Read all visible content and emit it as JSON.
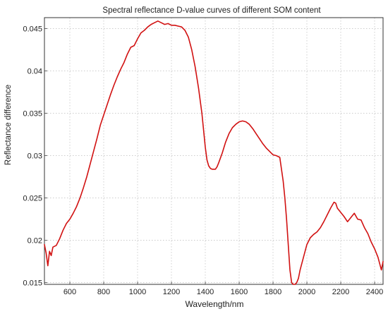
{
  "chart_data": {
    "type": "line",
    "title": "Spectral reflectance D-value curves of different SOM content",
    "xlabel": "Wavelength/nm",
    "ylabel": "Reflectance difference",
    "xlim": [
      450,
      2450
    ],
    "ylim": [
      0.0148,
      0.0463
    ],
    "xticks": [
      600,
      800,
      1000,
      1200,
      1400,
      1600,
      1800,
      2000,
      2200,
      2400
    ],
    "yticks": [
      0.015,
      0.02,
      0.025,
      0.03,
      0.035,
      0.04,
      0.045
    ],
    "ytick_labels": [
      "0.015",
      "0.02",
      "0.025",
      "0.03",
      "0.035",
      "0.04",
      "0.045"
    ],
    "grid": true,
    "series": [
      {
        "color": "#d11111",
        "x": [
          450,
          460,
          470,
          480,
          490,
          500,
          520,
          540,
          560,
          580,
          600,
          620,
          640,
          660,
          680,
          700,
          720,
          740,
          760,
          780,
          800,
          820,
          840,
          860,
          880,
          900,
          920,
          940,
          960,
          980,
          1000,
          1020,
          1040,
          1060,
          1080,
          1100,
          1120,
          1140,
          1160,
          1180,
          1200,
          1220,
          1240,
          1260,
          1280,
          1300,
          1320,
          1340,
          1360,
          1380,
          1400,
          1410,
          1420,
          1430,
          1440,
          1450,
          1460,
          1470,
          1480,
          1500,
          1520,
          1540,
          1560,
          1580,
          1600,
          1620,
          1640,
          1660,
          1680,
          1700,
          1720,
          1740,
          1760,
          1780,
          1800,
          1820,
          1840,
          1860,
          1870,
          1880,
          1890,
          1900,
          1910,
          1920,
          1930,
          1940,
          1950,
          1960,
          1980,
          2000,
          2020,
          2040,
          2060,
          2080,
          2100,
          2120,
          2140,
          2160,
          2170,
          2180,
          2200,
          2220,
          2240,
          2260,
          2280,
          2300,
          2320,
          2340,
          2360,
          2380,
          2400,
          2420,
          2440,
          2450
        ],
        "y": [
          0.0195,
          0.0185,
          0.017,
          0.0187,
          0.0182,
          0.0192,
          0.0194,
          0.0202,
          0.0212,
          0.022,
          0.0225,
          0.0232,
          0.024,
          0.025,
          0.0262,
          0.0275,
          0.029,
          0.0305,
          0.032,
          0.0336,
          0.0348,
          0.036,
          0.0372,
          0.0383,
          0.0393,
          0.0402,
          0.041,
          0.042,
          0.0428,
          0.043,
          0.0438,
          0.0445,
          0.0448,
          0.0452,
          0.0455,
          0.0457,
          0.0459,
          0.0457,
          0.0455,
          0.0456,
          0.0454,
          0.0454,
          0.0453,
          0.0452,
          0.0448,
          0.044,
          0.0425,
          0.0405,
          0.038,
          0.035,
          0.031,
          0.0295,
          0.0288,
          0.0285,
          0.0284,
          0.0284,
          0.0284,
          0.0287,
          0.0292,
          0.0303,
          0.0316,
          0.0326,
          0.0333,
          0.0337,
          0.034,
          0.0341,
          0.034,
          0.0337,
          0.0332,
          0.0326,
          0.032,
          0.0314,
          0.0309,
          0.0305,
          0.0301,
          0.03,
          0.0298,
          0.027,
          0.025,
          0.0225,
          0.0195,
          0.0165,
          0.015,
          0.0148,
          0.0148,
          0.015,
          0.0155,
          0.0165,
          0.018,
          0.0195,
          0.0203,
          0.0207,
          0.021,
          0.0215,
          0.0222,
          0.023,
          0.0238,
          0.0245,
          0.0244,
          0.0238,
          0.0233,
          0.0228,
          0.0222,
          0.0227,
          0.0232,
          0.0225,
          0.0224,
          0.0215,
          0.0208,
          0.0198,
          0.019,
          0.018,
          0.0165,
          0.0175
        ]
      }
    ]
  }
}
